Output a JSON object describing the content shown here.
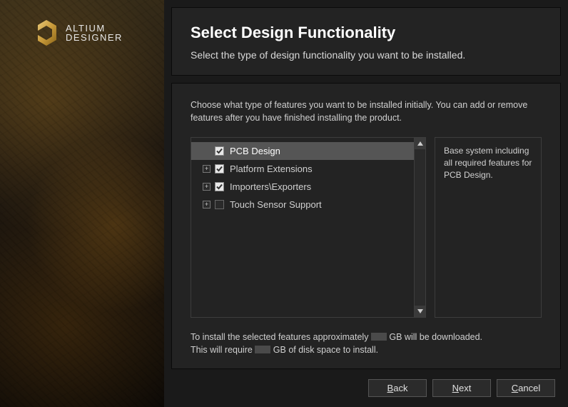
{
  "brand": {
    "line1": "ALTIUM",
    "line2": "DESIGNER"
  },
  "header": {
    "title": "Select Design Functionality",
    "subtitle": "Select the type of design functionality you want to be installed."
  },
  "instructions": "Choose what type of features you want to be installed initially. You can add or remove features after you have finished installing the product.",
  "features": {
    "items": [
      {
        "label": "PCB Design",
        "checked": true,
        "selected": true,
        "expandable": false
      },
      {
        "label": "Platform Extensions",
        "checked": true,
        "selected": false,
        "expandable": true
      },
      {
        "label": "Importers\\Exporters",
        "checked": true,
        "selected": false,
        "expandable": true
      },
      {
        "label": "Touch Sensor Support",
        "checked": false,
        "selected": false,
        "expandable": true
      }
    ],
    "description": "Base system including all required features for PCB Design."
  },
  "sizeInfo": {
    "line1a": "To install the selected features approximately ",
    "line1b": " GB will be downloaded.",
    "line2a": "This will require ",
    "line2b": " GB of disk space to install."
  },
  "buttons": {
    "back": "ack",
    "next": "ext",
    "cancel": "ancel"
  },
  "colors": {
    "accentGold": "#c89a3a",
    "panelBg": "#232323",
    "border": "#3d3d3d",
    "selectedRow": "#555555"
  }
}
